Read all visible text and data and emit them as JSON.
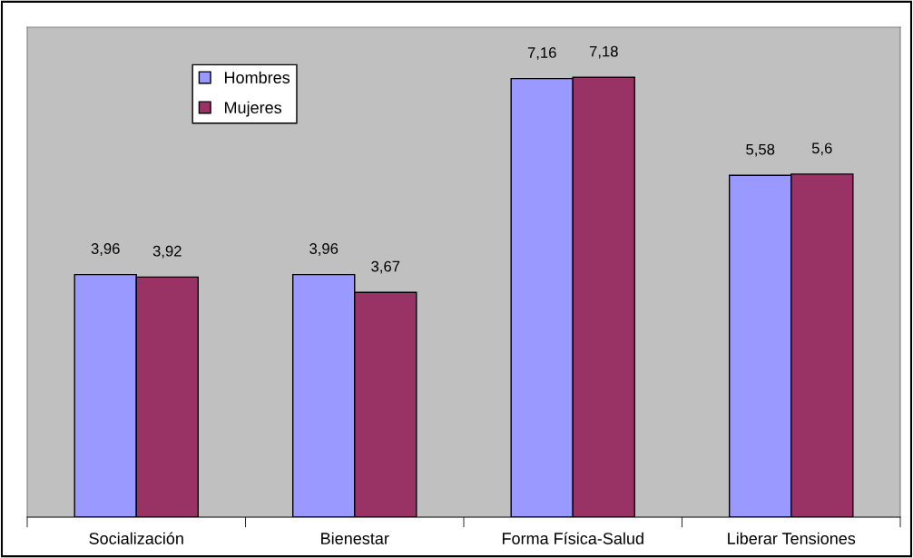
{
  "chart_data": {
    "type": "bar",
    "categories": [
      "Socialización",
      "Bienestar",
      "Forma Física-Salud",
      "Liberar Tensiones"
    ],
    "series": [
      {
        "name": "Hombres",
        "color": "#9999ff",
        "values": [
          3.96,
          3.96,
          7.16,
          5.58
        ],
        "value_labels": [
          "3,96",
          "3,96",
          "7,16",
          "5,58"
        ]
      },
      {
        "name": "Mujeres",
        "color": "#993366",
        "values": [
          3.92,
          3.67,
          7.18,
          5.6
        ],
        "value_labels": [
          "3,92",
          "3,67",
          "7,18",
          "5,6"
        ]
      }
    ],
    "legend": "top left",
    "tick_labels": "x"
  }
}
